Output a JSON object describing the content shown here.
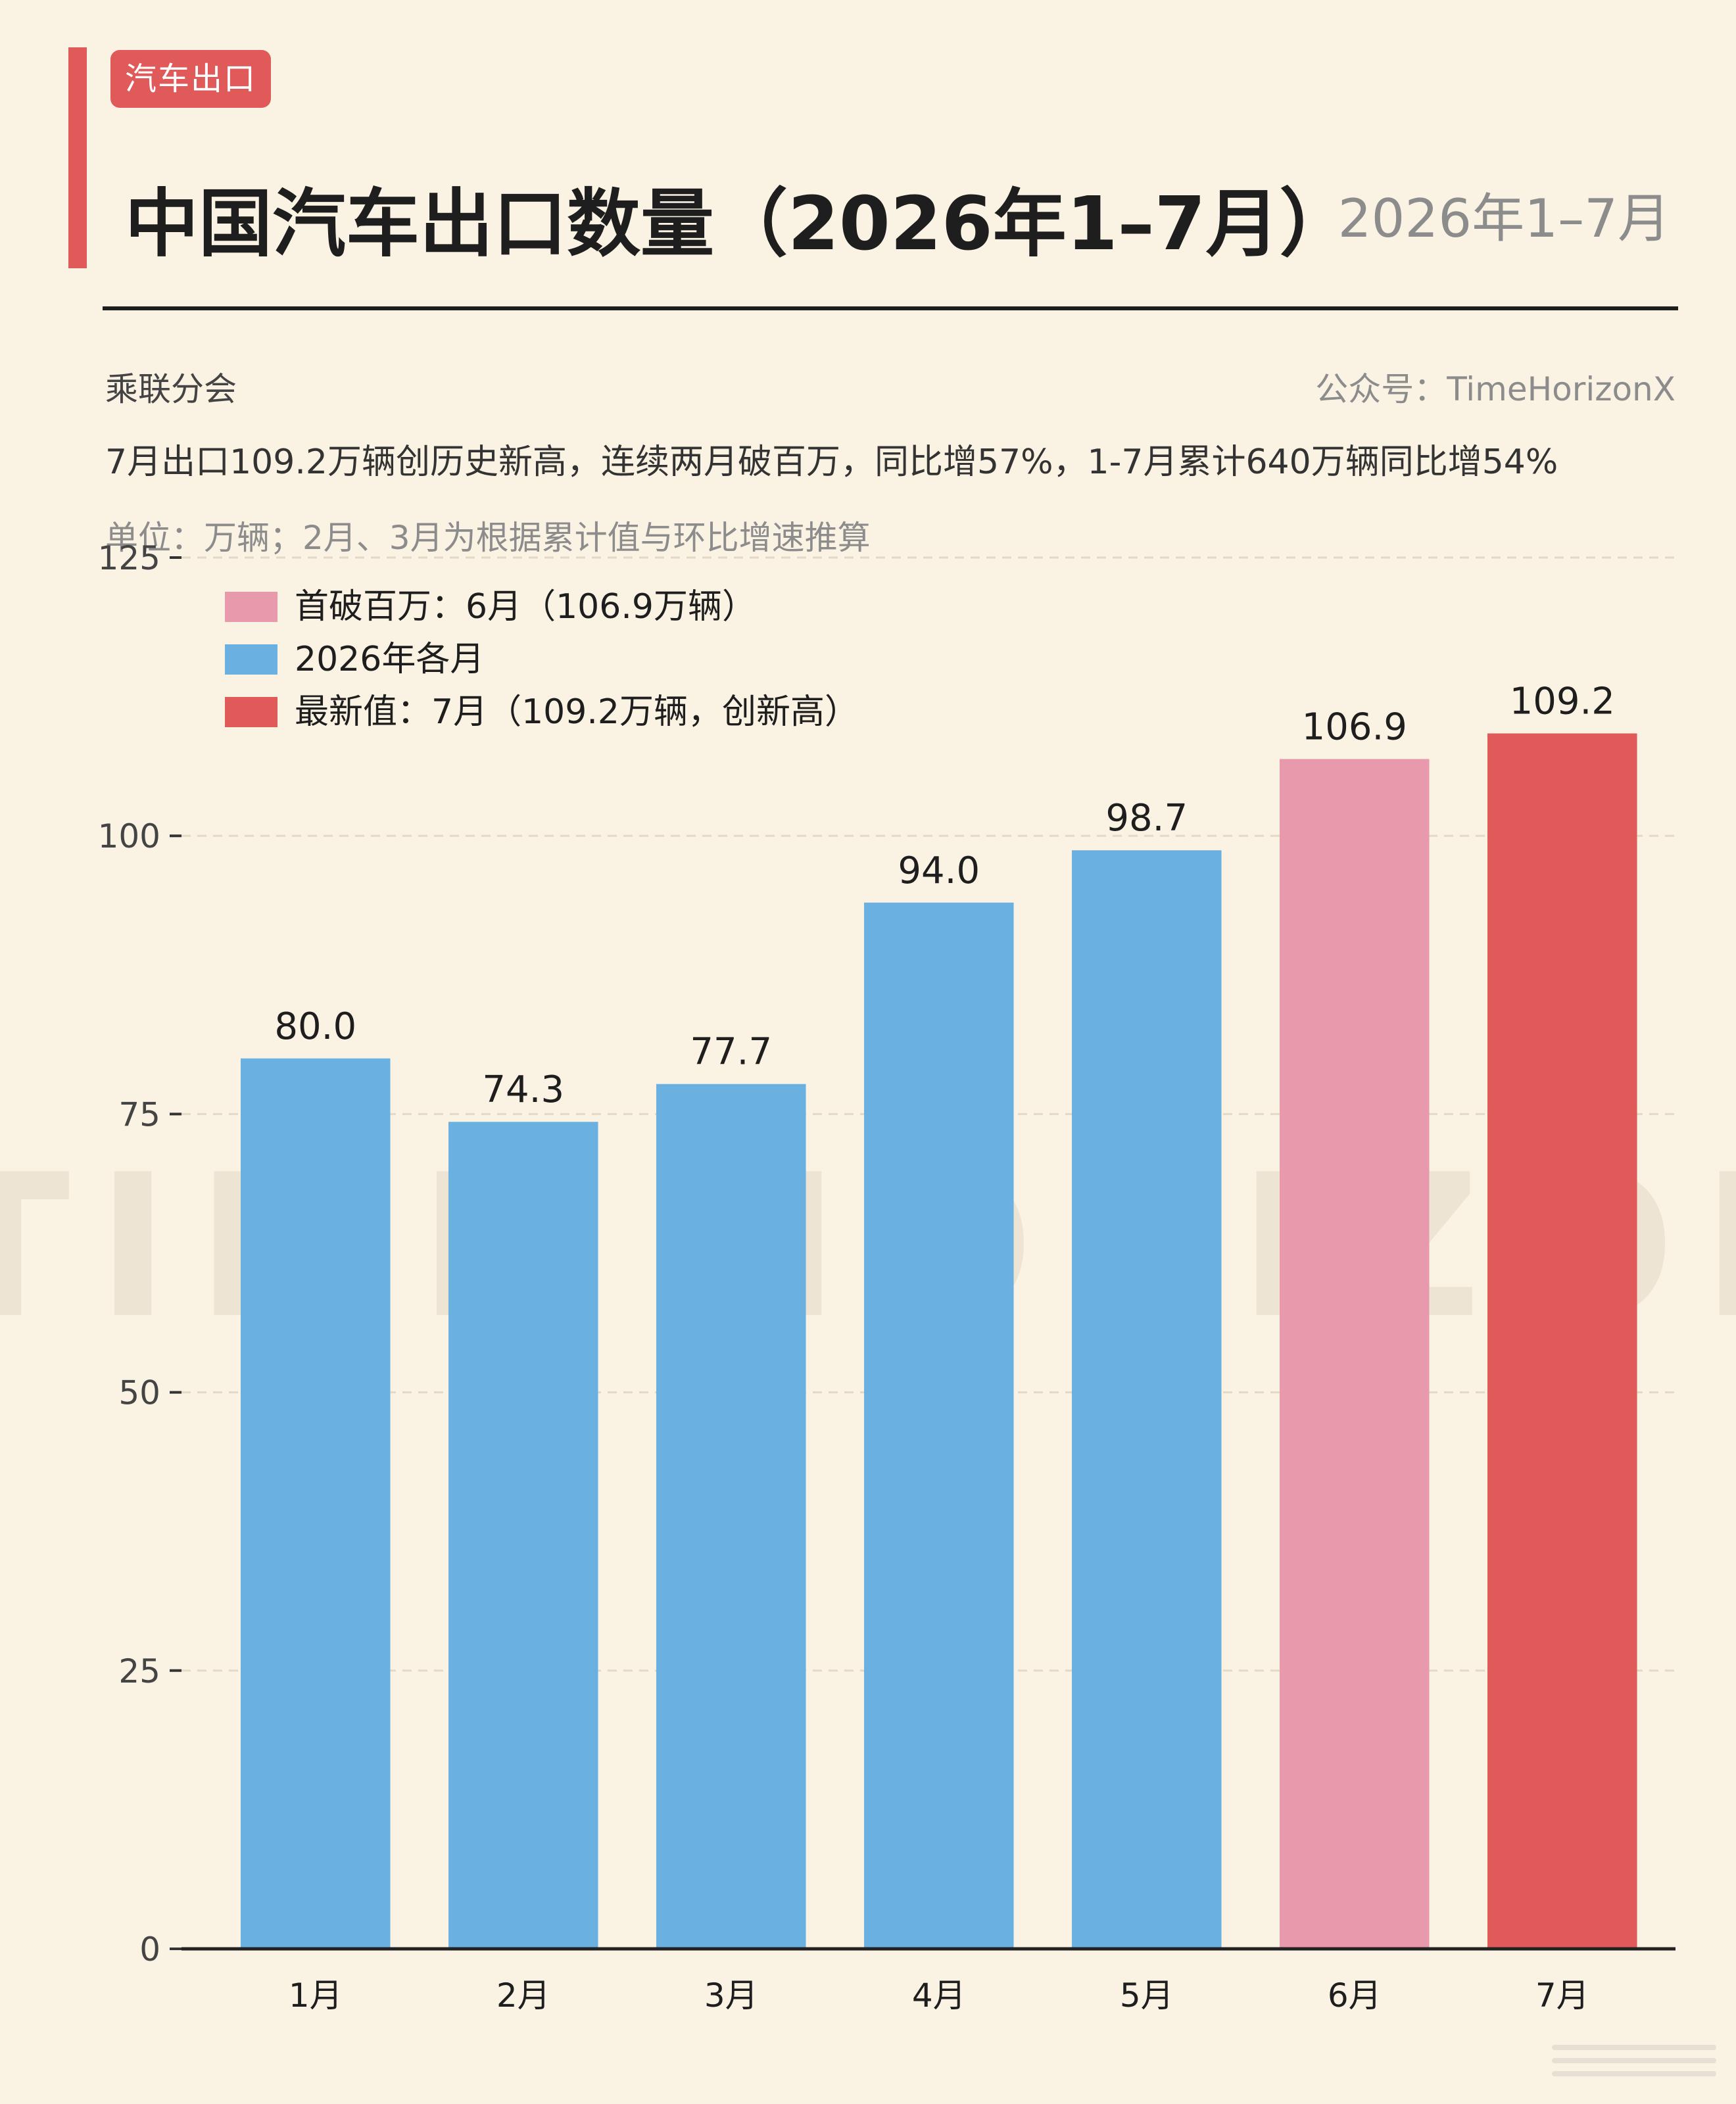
{
  "header": {
    "tag": "汽车出口",
    "title": "中国汽车出口数量（2026年1–7月）",
    "period": "2026年1–7月",
    "source": "乘联分会",
    "account": "公众号：TimeHorizonX",
    "headline": "7月出口109.2万辆创历史新高，连续两月破百万，同比增57%，1-7月累计640万辆同比增54%",
    "unit_note": "单位：万辆；2月、3月为根据累计值与环比增速推算"
  },
  "watermark": "TIME HORIZON",
  "colors": {
    "accent": "#e05a5a",
    "monthly": "#6ab0e0",
    "first_million": "#e89aac",
    "latest": "#e05a5a",
    "background": "#faf2e2"
  },
  "chart_data": {
    "type": "bar",
    "categories": [
      "1月",
      "2月",
      "3月",
      "4月",
      "5月",
      "6月",
      "7月"
    ],
    "values": [
      80.0,
      74.3,
      77.7,
      94.0,
      98.7,
      106.9,
      109.2
    ],
    "data_labels": [
      "80.0",
      "74.3",
      "77.7",
      "94.0",
      "98.7",
      "106.9",
      "109.2"
    ],
    "bar_series": [
      "monthly",
      "monthly",
      "monthly",
      "monthly",
      "monthly",
      "first_million",
      "latest"
    ],
    "series": [
      {
        "key": "first_million",
        "name": "首破百万：6月（106.9万辆）"
      },
      {
        "key": "monthly",
        "name": "2026年各月"
      },
      {
        "key": "latest",
        "name": "最新值：7月（109.2万辆，创新高）"
      }
    ],
    "ylim": [
      0,
      125
    ],
    "yticks": [
      0,
      25,
      50,
      75,
      100,
      125
    ],
    "grid": true,
    "legend_position": "top-left",
    "xlabel": "",
    "ylabel": ""
  }
}
